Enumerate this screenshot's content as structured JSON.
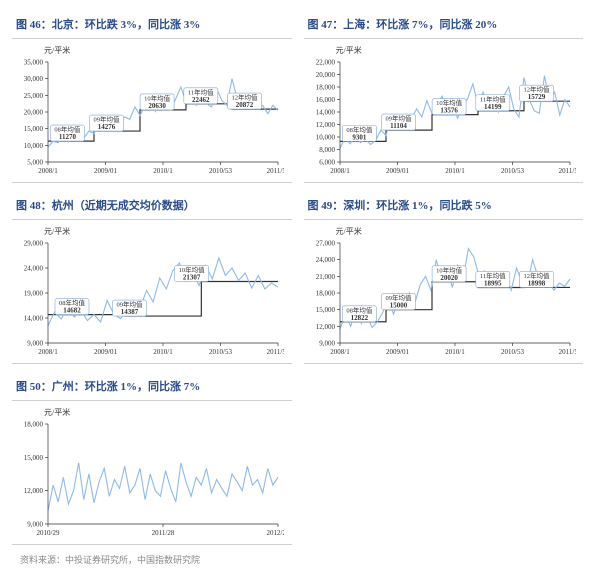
{
  "colors": {
    "title": "#2a4a8a",
    "series": "#8fb9e8",
    "step": "#333333",
    "annot_border": "#7fa8d6",
    "axis": "#333333"
  },
  "footer": "资料来源：中投证券研究所，中国指数研究院",
  "charts": [
    {
      "key": "beijing",
      "title": "图 46：北京：环比跌 3%，同比涨 3%",
      "y_unit": "元/平米",
      "ylim": [
        5000,
        35000
      ],
      "ytick_step": 5000,
      "xticks": [
        "2008/1",
        "2009/01",
        "2010/1",
        "2010/53",
        "2011/52"
      ],
      "step_levels": [
        11270,
        14276,
        20630,
        22462,
        20872
      ],
      "annotations": [
        {
          "xf": 0.08,
          "label": "08年均值",
          "value": "11270"
        },
        {
          "xf": 0.25,
          "label": "09年均值",
          "value": "14276"
        },
        {
          "xf": 0.47,
          "label": "10年均值",
          "value": "20630"
        },
        {
          "xf": 0.66,
          "label": "11年均值",
          "value": "22462"
        },
        {
          "xf": 0.85,
          "label": "12年均值",
          "value": "20872"
        }
      ],
      "series_y": [
        9500,
        11200,
        10800,
        12500,
        11000,
        13000,
        11800,
        12200,
        14276,
        13500,
        16800,
        14200,
        15600,
        15000,
        17200,
        18500,
        17800,
        21500,
        19000,
        22000,
        24500,
        20200,
        23800,
        21000,
        20630,
        24000,
        27500,
        23000,
        26000,
        22000,
        25500,
        22462,
        21500,
        27000,
        23500,
        22000,
        30000,
        24000,
        22000,
        21500,
        23500,
        20872,
        22000,
        19500,
        22000,
        20500
      ]
    },
    {
      "key": "shanghai",
      "title": "图 47：上海：环比涨 7%，同比涨 20%",
      "y_unit": "元/平米",
      "ylim": [
        6000,
        22000
      ],
      "ytick_step": 2000,
      "xticks": [
        "2008/1",
        "2009/01",
        "2010/1",
        "2010/53",
        "2011/52"
      ],
      "step_levels": [
        9301,
        11104,
        13576,
        14199,
        15729
      ],
      "annotations": [
        {
          "xf": 0.08,
          "label": "08年均值",
          "value": "9301"
        },
        {
          "xf": 0.25,
          "label": "09年均值",
          "value": "11104"
        },
        {
          "xf": 0.47,
          "label": "10年均值",
          "value": "13576"
        },
        {
          "xf": 0.66,
          "label": "11年均值",
          "value": "14199"
        },
        {
          "xf": 0.85,
          "label": "12年均值",
          "value": "15729"
        }
      ],
      "series_y": [
        8200,
        9800,
        8900,
        10200,
        9100,
        9600,
        8800,
        9500,
        11104,
        10200,
        13500,
        11200,
        12000,
        11800,
        13000,
        14500,
        13200,
        15800,
        13800,
        15200,
        16500,
        13576,
        15500,
        13000,
        14800,
        16200,
        18500,
        15000,
        17200,
        14199,
        15800,
        14000,
        16500,
        18000,
        14500,
        13200,
        19500,
        16000,
        14200,
        13800,
        19800,
        15729,
        17200,
        13500,
        16000,
        14800
      ]
    },
    {
      "key": "hangzhou",
      "title": "图 48：杭州（近期无成交均价数据）",
      "y_unit": "元/平米",
      "ylim": [
        9000,
        29000
      ],
      "ytick_step": 5000,
      "xticks": [
        "2008/1",
        "2009/01",
        "2010/1",
        "2010/53",
        "2011/52"
      ],
      "step_levels": [
        14682,
        14387,
        21307
      ],
      "annotations": [
        {
          "xf": 0.1,
          "label": "08年均值",
          "value": "14682"
        },
        {
          "xf": 0.35,
          "label": "09年均值",
          "value": "14387"
        },
        {
          "xf": 0.62,
          "label": "10年均值",
          "value": "21307"
        }
      ],
      "series_y": [
        12500,
        15200,
        13800,
        16000,
        14200,
        15500,
        13500,
        14682,
        13200,
        17500,
        14800,
        13900,
        15200,
        14387,
        16000,
        19500,
        17200,
        22000,
        19800,
        23500,
        25000,
        21307,
        23000,
        20500,
        24500,
        21800,
        26000,
        22500,
        24000,
        21500,
        23000,
        20000,
        22500,
        19800,
        21000,
        20200
      ]
    },
    {
      "key": "shenzhen",
      "title": "图 49：深圳：环比涨 1%，同比跌 5%",
      "y_unit": "元/平米",
      "ylim": [
        9000,
        27000
      ],
      "ytick_step": 3000,
      "xticks": [
        "2008/1",
        "2009/01",
        "2010/1",
        "2010/53",
        "2011/52"
      ],
      "step_levels": [
        12822,
        15000,
        20020,
        18995,
        18998
      ],
      "annotations": [
        {
          "xf": 0.08,
          "label": "08年均值",
          "value": "12822"
        },
        {
          "xf": 0.25,
          "label": "09年均值",
          "value": "15000"
        },
        {
          "xf": 0.47,
          "label": "10年均值",
          "value": "20020"
        },
        {
          "xf": 0.66,
          "label": "11年均值",
          "value": "18995"
        },
        {
          "xf": 0.85,
          "label": "12年均值",
          "value": "18998"
        }
      ],
      "series_y": [
        11500,
        14200,
        12000,
        15000,
        12500,
        13800,
        11800,
        12822,
        14500,
        17000,
        14200,
        16500,
        15000,
        18000,
        16200,
        19500,
        21000,
        18500,
        24000,
        20020,
        22500,
        19000,
        23000,
        20500,
        26000,
        24500,
        21000,
        22000,
        18995,
        20500,
        19500,
        21500,
        18500,
        22500,
        20000,
        19200,
        24000,
        21000,
        18998,
        20000,
        18500,
        19800,
        19200,
        20500
      ]
    },
    {
      "key": "guangzhou",
      "title": "图 50：广州：环比涨 1%，同比涨 7%",
      "y_unit": "元/平米",
      "ylim": [
        9000,
        18000
      ],
      "ytick_step": 3000,
      "xticks": [
        "2010/29",
        "2011/28",
        "2012/28"
      ],
      "step_levels": [],
      "annotations": [],
      "series_y": [
        10200,
        12500,
        11000,
        13200,
        10800,
        12000,
        14500,
        11200,
        13500,
        10900,
        12800,
        14000,
        11500,
        13000,
        12200,
        14200,
        11800,
        12500,
        14000,
        11200,
        13500,
        12000,
        11500,
        13800,
        12200,
        11000,
        14500,
        12800,
        11500,
        13200,
        12500,
        14000,
        11800,
        13000,
        12200,
        11500,
        13500,
        12800,
        12000,
        14200,
        12500,
        13000,
        11800,
        14000,
        12500,
        13200
      ]
    }
  ]
}
